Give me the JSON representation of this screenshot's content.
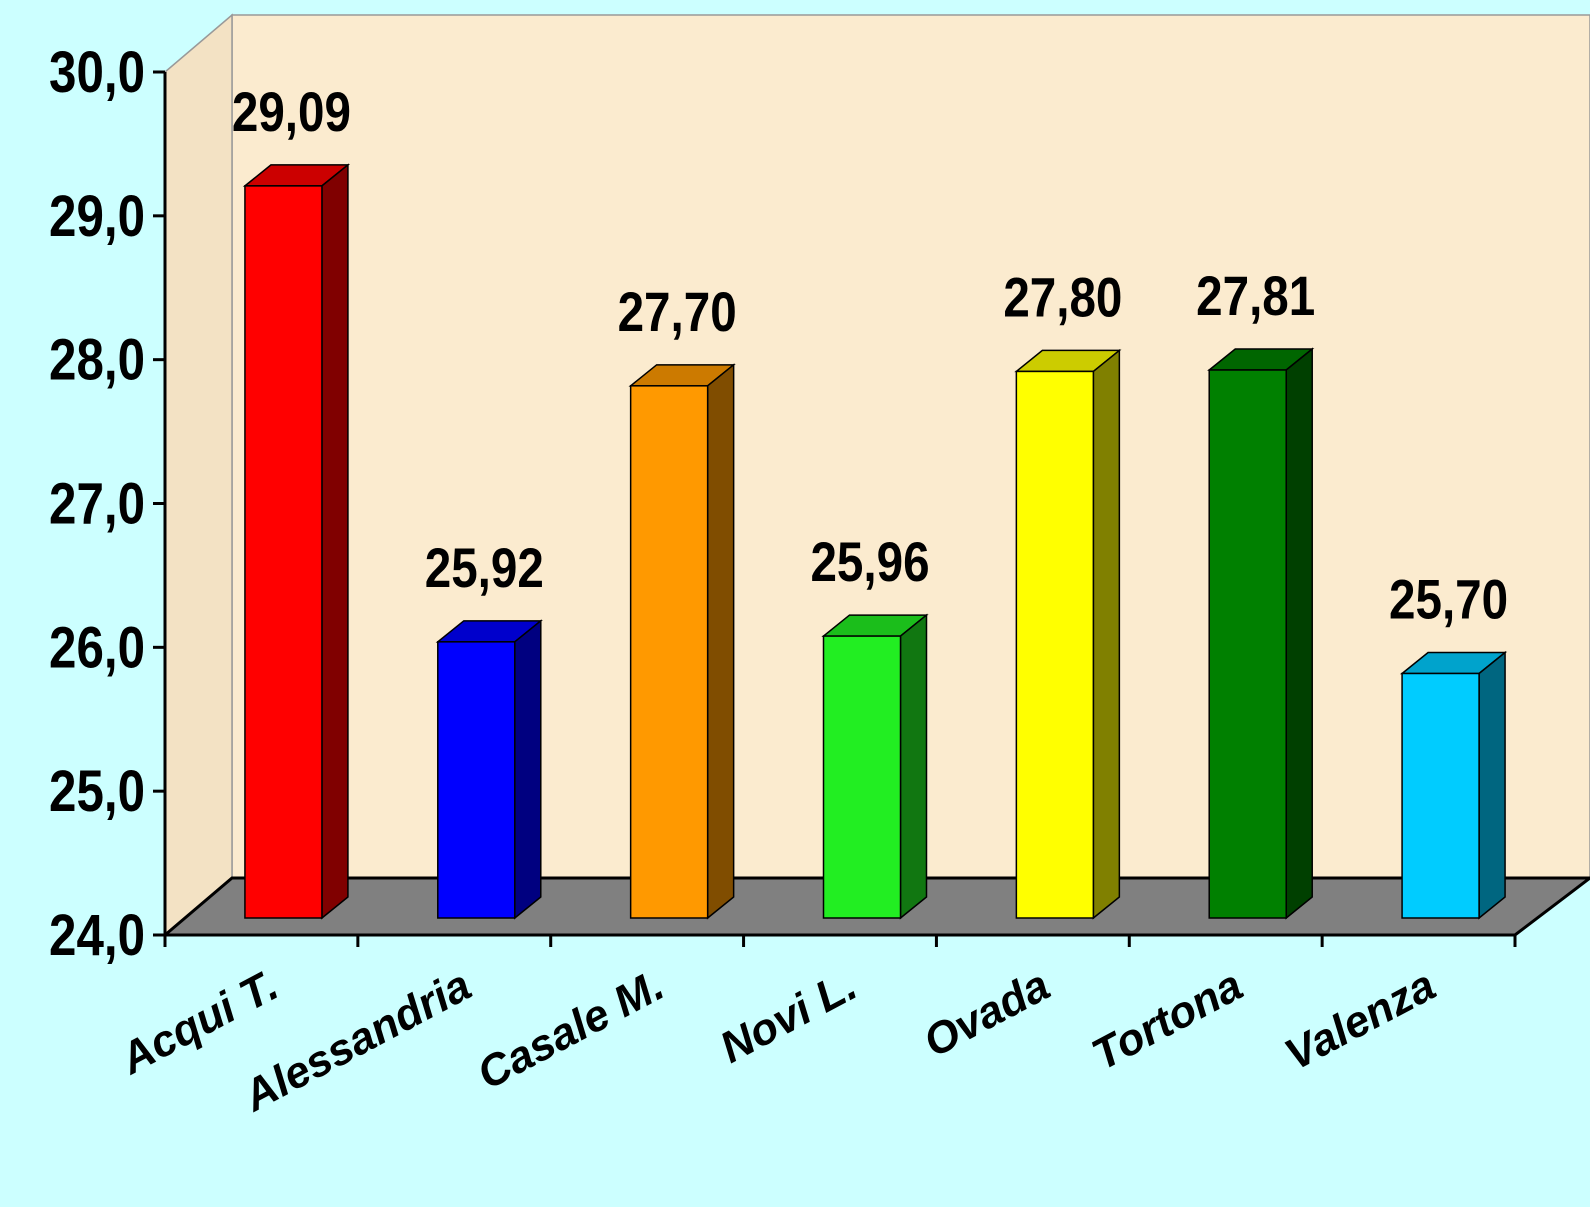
{
  "chart_data": {
    "type": "bar3d",
    "categories": [
      "Acqui T.",
      "Alessandria",
      "Casale M.",
      "Novi L.",
      "Ovada",
      "Tortona",
      "Valenza"
    ],
    "values": [
      29.09,
      25.92,
      27.7,
      25.96,
      27.8,
      27.81,
      25.7
    ],
    "value_labels": [
      "29,09",
      "25,92",
      "27,70",
      "25,96",
      "27,80",
      "27,81",
      "25,70"
    ],
    "colors": [
      "#ff0000",
      "#0000ff",
      "#ff9900",
      "#22ee22",
      "#ffff00",
      "#008000",
      "#00ccff"
    ],
    "ylim": [
      24,
      30
    ],
    "yticks": [
      {
        "value": 24,
        "label": "24,0"
      },
      {
        "value": 25,
        "label": "25,0"
      },
      {
        "value": 26,
        "label": "26,0"
      },
      {
        "value": 27,
        "label": "27,0"
      },
      {
        "value": 28,
        "label": "28,0"
      },
      {
        "value": 29,
        "label": "29,0"
      },
      {
        "value": 30,
        "label": "30,0"
      }
    ]
  }
}
